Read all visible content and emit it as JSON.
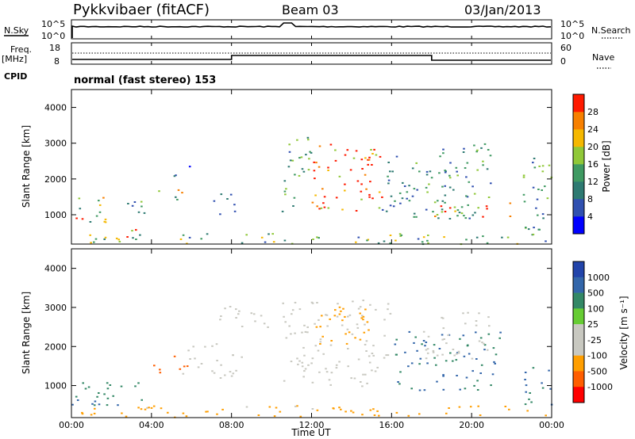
{
  "header": {
    "station": "Pykkvibaer (fitACF)",
    "beam": "Beam 03",
    "date": "03/Jan/2013"
  },
  "params": {
    "nsky_label": "N.Sky",
    "nsky_ticks": [
      "10^5",
      "10^0"
    ],
    "nsearch_ticks": [
      "10^5",
      "10^0"
    ],
    "nsearch_label": "N.Search",
    "freq_label": "Freq.",
    "freq_unit": "[MHz]",
    "freq_ticks": [
      "18",
      "8"
    ],
    "nave_ticks": [
      "60",
      "0"
    ],
    "nave_label": "Nave",
    "cpid_label": "CPID",
    "cpid_text": "normal (fast stereo) 153"
  },
  "colors": {
    "power": [
      "#0000ff",
      "#3050b0",
      "#2e7a72",
      "#3f9a62",
      "#90c838",
      "#f5b800",
      "#f78000",
      "#ff1a00"
    ],
    "velocity": [
      "#ff0000",
      "#ff5e00",
      "#ff9e00",
      "#c8c8c0",
      "#c8c8c0",
      "#66cc33",
      "#338866",
      "#3366aa",
      "#2244aa"
    ]
  },
  "chart_data": [
    {
      "type": "heatmap",
      "panel": "power",
      "ylabel": "Slant Range [km]",
      "xlabel": "",
      "xlim": [
        0,
        24
      ],
      "ylim": [
        180,
        4500
      ],
      "yticks": [
        "1000",
        "2000",
        "3000",
        "4000"
      ],
      "xticks_hours": [
        0,
        4,
        8,
        12,
        16,
        20,
        24
      ],
      "colorbar": {
        "label": "Power [dB]",
        "ticks": [
          "4",
          "8",
          "12",
          "16",
          "20",
          "24",
          "28"
        ],
        "range": [
          0,
          30
        ]
      },
      "regions": [
        {
          "t0": 0.0,
          "t1": 1.8,
          "r0": 800,
          "r1": 1500,
          "value": 16
        },
        {
          "t0": 0.0,
          "t1": 0.9,
          "r0": 800,
          "r1": 1100,
          "value": 26
        },
        {
          "t0": 1.5,
          "t1": 3.2,
          "r0": 300,
          "r1": 600,
          "value": 24
        },
        {
          "t0": 2.5,
          "t1": 4.2,
          "r0": 1000,
          "r1": 1500,
          "value": 10
        },
        {
          "t0": 4.3,
          "t1": 5.6,
          "r0": 1300,
          "r1": 1800,
          "value": 17
        },
        {
          "t0": 5.0,
          "t1": 6.2,
          "r0": 2100,
          "r1": 2400,
          "value": 8
        },
        {
          "t0": 6.8,
          "t1": 8.2,
          "r0": 1000,
          "r1": 1600,
          "value": 9
        },
        {
          "t0": 10.5,
          "t1": 12.0,
          "r0": 1100,
          "r1": 3200,
          "value": 12
        },
        {
          "t0": 12.0,
          "t1": 15.5,
          "r0": 1100,
          "r1": 3100,
          "value": 26
        },
        {
          "t0": 15.5,
          "t1": 21.0,
          "r0": 900,
          "r1": 3000,
          "value": 10
        },
        {
          "t0": 18.0,
          "t1": 22.0,
          "r0": 900,
          "r1": 1400,
          "value": 25
        },
        {
          "t0": 22.5,
          "t1": 24.0,
          "r0": 600,
          "r1": 2800,
          "value": 12
        },
        {
          "t0": 0.0,
          "t1": 24.0,
          "r0": 200,
          "r1": 500,
          "value": 14
        }
      ]
    },
    {
      "type": "heatmap",
      "panel": "velocity",
      "ylabel": "Slant Range [km]",
      "xlabel": "Time UT",
      "xlim": [
        0,
        24
      ],
      "ylim": [
        180,
        4500
      ],
      "yticks": [
        "1000",
        "2000",
        "3000",
        "4000"
      ],
      "xticks": [
        "00:00",
        "04:00",
        "08:00",
        "12:00",
        "16:00",
        "20:00",
        "00:00"
      ],
      "xticks_hours": [
        0,
        4,
        8,
        12,
        16,
        20,
        24
      ],
      "colorbar": {
        "label": "Velocity [m s⁻¹]",
        "ticks": [
          "1000",
          "500",
          "100",
          "25",
          "-25",
          "-100",
          "-500",
          "-1000"
        ]
      },
      "regions": [
        {
          "t0": 0.0,
          "t1": 3.5,
          "r0": 500,
          "r1": 1100,
          "value": 100
        },
        {
          "t0": 0.0,
          "t1": 2.5,
          "r0": 400,
          "r1": 700,
          "value": 500
        },
        {
          "t0": 4.0,
          "t1": 5.8,
          "r0": 1300,
          "r1": 1800,
          "value": -300
        },
        {
          "t0": 5.5,
          "t1": 8.5,
          "r0": 1200,
          "r1": 2100,
          "value": 0
        },
        {
          "t0": 7.0,
          "t1": 10.0,
          "r0": 2500,
          "r1": 3100,
          "value": 0
        },
        {
          "t0": 10.5,
          "t1": 16.0,
          "r0": 1000,
          "r1": 3200,
          "value": 0
        },
        {
          "t0": 12.0,
          "t1": 15.0,
          "r0": 2000,
          "r1": 3100,
          "value": -150
        },
        {
          "t0": 16.0,
          "t1": 21.5,
          "r0": 900,
          "r1": 2400,
          "value": 300
        },
        {
          "t0": 17.5,
          "t1": 21.0,
          "r0": 1700,
          "r1": 2900,
          "value": 0
        },
        {
          "t0": 22.5,
          "t1": 24.0,
          "r0": 500,
          "r1": 1600,
          "value": 300
        },
        {
          "t0": 0.0,
          "t1": 24.0,
          "r0": 200,
          "r1": 500,
          "value": -80
        }
      ]
    }
  ]
}
